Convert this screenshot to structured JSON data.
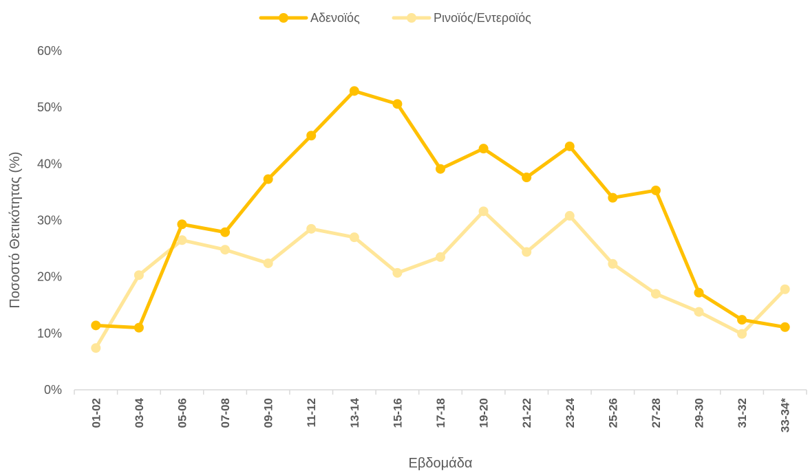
{
  "chart_data": {
    "type": "line",
    "categories": [
      "01-02",
      "03-04",
      "05-06",
      "07-08",
      "09-10",
      "11-12",
      "13-14",
      "15-16",
      "17-18",
      "19-20",
      "21-22",
      "23-24",
      "25-26",
      "27-28",
      "29-30",
      "31-32",
      "33-34*"
    ],
    "series": [
      {
        "name": "Αδενοϊός",
        "color": "#FFC000",
        "values": [
          11.4,
          11.0,
          29.3,
          27.9,
          37.3,
          45.0,
          52.9,
          50.6,
          39.1,
          42.7,
          37.6,
          43.1,
          34.0,
          35.3,
          17.2,
          12.4,
          11.1
        ]
      },
      {
        "name": "Ρινοϊός/Εντεροϊός",
        "color": "#FFE699",
        "values": [
          7.4,
          20.3,
          26.5,
          24.8,
          22.4,
          28.5,
          27.0,
          20.7,
          23.5,
          31.6,
          24.4,
          30.8,
          22.3,
          17.0,
          13.8,
          9.9,
          17.8
        ]
      }
    ],
    "xlabel": "Εβδομάδα",
    "ylabel": "Ποσοστό Θετικότητας (%)",
    "ylim": [
      0,
      60
    ],
    "yticks": [
      0,
      10,
      20,
      30,
      40,
      50,
      60
    ],
    "ytick_labels": [
      "0%",
      "10%",
      "20%",
      "30%",
      "40%",
      "50%",
      "60%"
    ],
    "grid": false,
    "legend_position": "top-center"
  }
}
